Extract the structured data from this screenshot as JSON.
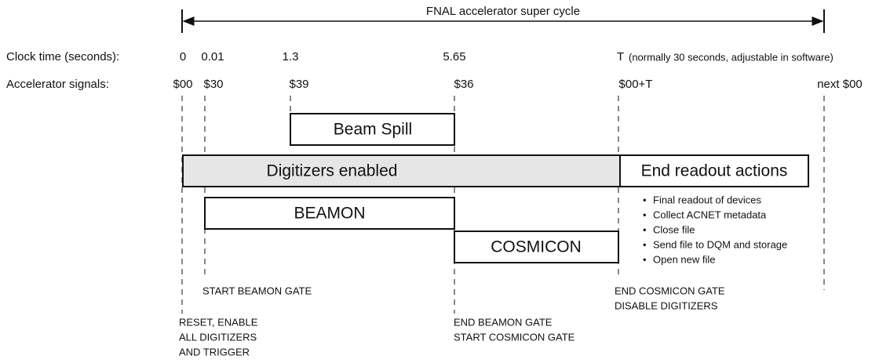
{
  "title": "FNAL accelerator super cycle",
  "clock_time": {
    "label": "Clock time (seconds):",
    "ticks": [
      "0",
      "0.01",
      "1.3",
      "5.65",
      "T"
    ],
    "note": "(normally 30 seconds, adjustable in software)"
  },
  "accelerator_signals": {
    "label": "Accelerator signals:",
    "ticks": [
      "$00",
      "$30",
      "$39",
      "$36",
      "$00+T",
      "next $00"
    ]
  },
  "boxes": [
    "Beam Spill",
    "Digitizers enabled",
    "End readout actions",
    "BEAMON",
    "COSMICON"
  ],
  "readout_actions": [
    "Final readout of devices",
    "Collect ACNET metadata",
    "Close file",
    "Send file to DQM and storage",
    "Open new file"
  ],
  "events": [
    {
      "lines": [
        "START BEAMON GATE"
      ]
    },
    {
      "lines": [
        "RESET, ENABLE",
        "ALL DIGITIZERS",
        "AND TRIGGER"
      ]
    },
    {
      "lines": [
        "END BEAMON GATE",
        "START COSMICON GATE"
      ]
    },
    {
      "lines": [
        "END COSMICON GATE",
        "DISABLE DIGITIZERS"
      ]
    }
  ]
}
